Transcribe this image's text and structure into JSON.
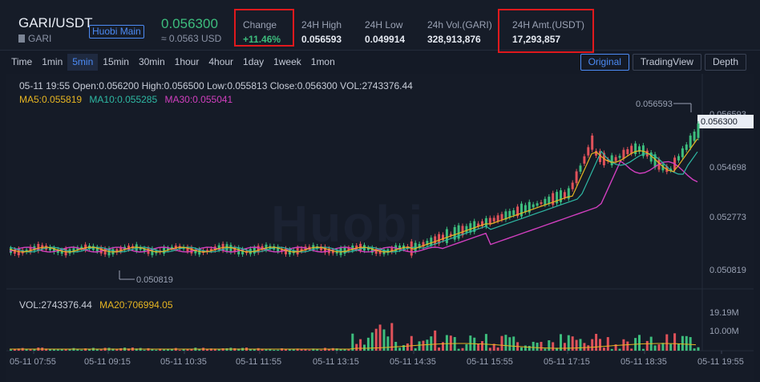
{
  "header": {
    "pair": "GARI/USDT",
    "badge": "Huobi Main",
    "base": "GARI",
    "last_price": "0.056300",
    "last_usd": "≈ 0.0563 USD",
    "stats": [
      {
        "label": "Change",
        "value": "+11.46%"
      },
      {
        "label": "24H High",
        "value": "0.056593"
      },
      {
        "label": "24H Low",
        "value": "0.049914"
      },
      {
        "label": "24h Vol.(GARI)",
        "value": "328,913,876"
      },
      {
        "label": "24H Amt.(USDT)",
        "value": "17,293,857"
      }
    ]
  },
  "toolbar": {
    "intervals": [
      "Time",
      "1min",
      "5min",
      "15min",
      "30min",
      "1hour",
      "4hour",
      "1day",
      "1week",
      "1mon"
    ],
    "active_interval": "5min",
    "views": [
      "Original",
      "TradingView",
      "Depth"
    ],
    "active_view": "Original"
  },
  "chart": {
    "ohlc": "05-11 19:55   Open:0.056200  High:0.056500  Low:0.055813  Close:0.056300  VOL:2743376.44",
    "ma5": "MA5:0.055819",
    "ma10": "MA10:0.055285",
    "ma30": "MA30:0.055041",
    "vol": "VOL:2743376.44",
    "ma20": "MA20:706994.05",
    "price_ticks": [
      "0.056593",
      "0.056300",
      "0.054698",
      "0.052773",
      "0.050819"
    ],
    "max_label": "0.056593",
    "min_label": "0.050819",
    "vol_ticks": [
      "19.19M",
      "10.00M"
    ],
    "time_ticks": [
      "05-11 07:55",
      "05-11 09:15",
      "05-11 10:35",
      "05-11 11:55",
      "05-11 13:15",
      "05-11 14:35",
      "05-11 15:55",
      "05-11 17:15",
      "05-11 18:35",
      "05-11 19:55"
    ],
    "watermark": "Huobi",
    "colors": {
      "up": "#3dbd7d",
      "down": "#e0525a",
      "ma5": "#e6b522",
      "ma10": "#2eb8a3",
      "ma30": "#d13fbf",
      "highlight": "#e0191d",
      "accent": "#4c8bf5"
    }
  }
}
